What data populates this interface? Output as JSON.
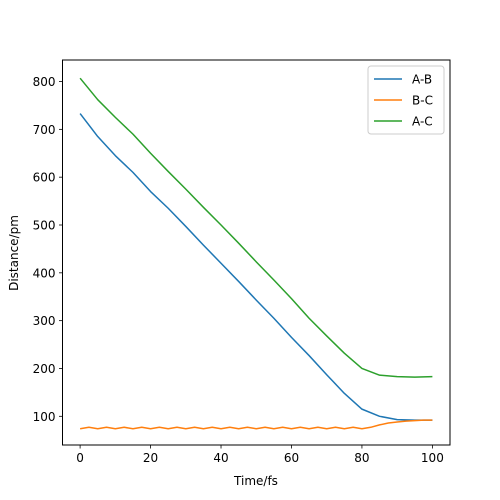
{
  "chart_data": {
    "type": "line",
    "xlabel": "Time/fs",
    "ylabel": "Distance/pm",
    "xlim": [
      -5,
      105
    ],
    "ylim": [
      40,
      845
    ],
    "x_ticks": [
      0,
      20,
      40,
      60,
      80,
      100
    ],
    "y_ticks": [
      100,
      200,
      300,
      400,
      500,
      600,
      700,
      800
    ],
    "grid": false,
    "legend_position": "upper right",
    "series": [
      {
        "name": "A-B",
        "color": "#1f77b4",
        "x": [
          0,
          5,
          10,
          15,
          20,
          25,
          30,
          35,
          40,
          45,
          50,
          55,
          60,
          65,
          70,
          75,
          80,
          85,
          90,
          95,
          100
        ],
        "y": [
          733,
          685,
          645,
          610,
          570,
          535,
          497,
          458,
          420,
          382,
          343,
          305,
          265,
          227,
          187,
          148,
          115,
          100,
          93,
          92,
          92
        ]
      },
      {
        "name": "B-C",
        "color": "#ff7f0e",
        "x": [
          0,
          2.5,
          5,
          7.5,
          10,
          12.5,
          15,
          17.5,
          20,
          22.5,
          25,
          27.5,
          30,
          32.5,
          35,
          37.5,
          40,
          42.5,
          45,
          47.5,
          50,
          52.5,
          55,
          57.5,
          60,
          62.5,
          65,
          67.5,
          70,
          72.5,
          75,
          77.5,
          80,
          82.5,
          85,
          87.5,
          90,
          92.5,
          95,
          97.5,
          100
        ],
        "y": [
          74,
          77,
          74,
          77,
          74,
          77,
          74,
          77,
          74,
          77,
          74,
          77,
          74,
          77,
          74,
          77,
          74,
          77,
          74,
          77,
          74,
          77,
          74,
          77,
          74,
          77,
          74,
          77,
          74,
          77,
          74,
          77,
          74,
          77,
          82,
          86,
          88,
          90,
          91,
          92,
          92
        ]
      },
      {
        "name": "A-C",
        "color": "#2ca02c",
        "x": [
          0,
          5,
          10,
          15,
          20,
          25,
          30,
          35,
          40,
          45,
          50,
          55,
          60,
          65,
          70,
          75,
          80,
          85,
          90,
          95,
          100
        ],
        "y": [
          807,
          762,
          725,
          690,
          650,
          612,
          575,
          537,
          500,
          462,
          423,
          385,
          346,
          305,
          268,
          232,
          200,
          186,
          183,
          182,
          183
        ]
      }
    ]
  }
}
